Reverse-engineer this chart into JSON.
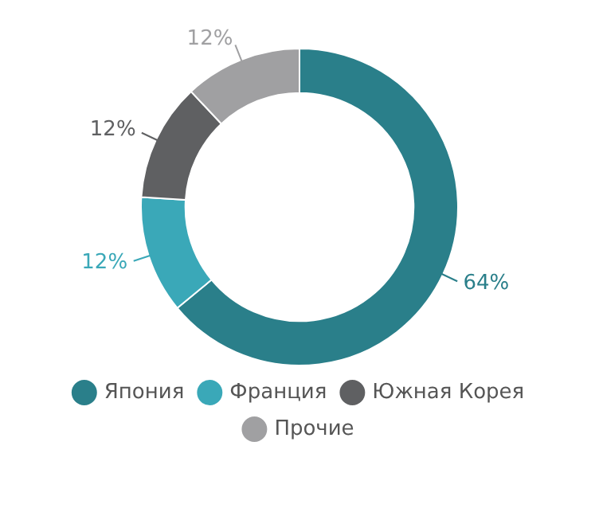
{
  "chart_data": {
    "type": "donut",
    "categories": [
      "Япония",
      "Франция",
      "Южная Корея",
      "Прочие"
    ],
    "values": [
      64,
      12,
      12,
      12
    ],
    "colors": [
      "#2a7f8a",
      "#3aa8b8",
      "#5f6062",
      "#a0a0a2"
    ],
    "value_labels": [
      "64%",
      "12%",
      "12%",
      "12%"
    ],
    "legend": "bottom"
  }
}
